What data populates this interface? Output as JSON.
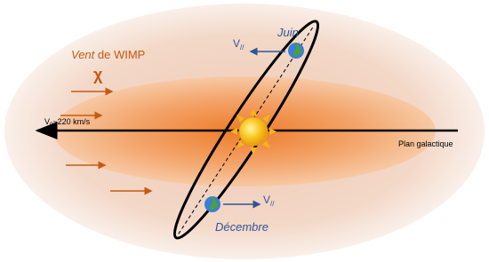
{
  "wind": {
    "label_italic": "Vent",
    "label_rest": "de WIMP",
    "symbol": "χ"
  },
  "sun_velocity": {
    "symbol": "V",
    "subscript": "0",
    "value": "~220 km/s"
  },
  "plane_label": "Plan galactique",
  "june": {
    "label": "Juin",
    "velocity": {
      "symbol": "V",
      "subscript": "//"
    }
  },
  "december": {
    "label": "Décembre",
    "velocity": {
      "symbol": "V",
      "subscript": "//"
    }
  }
}
